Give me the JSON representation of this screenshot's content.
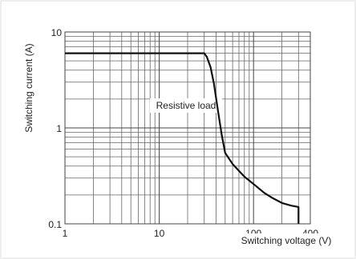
{
  "chart_data": {
    "type": "line",
    "xscale": "log",
    "yscale": "log",
    "xlim": [
      1,
      400
    ],
    "ylim": [
      0.1,
      10
    ],
    "xticks": [
      {
        "value": 1,
        "label": "1"
      },
      {
        "value": 10,
        "label": "10"
      },
      {
        "value": 100,
        "label": "100"
      },
      {
        "value": 400,
        "label": "400"
      }
    ],
    "yticks": [
      {
        "value": 0.1,
        "label": "0.1"
      },
      {
        "value": 1,
        "label": "1"
      },
      {
        "value": 10,
        "label": "10"
      }
    ],
    "xlabel": "Switching voltage (V)",
    "ylabel": "Switching current (A)",
    "grid": true,
    "annotation": "Resistive load",
    "series": [
      {
        "x": [
          1,
          30,
          32,
          35,
          38,
          42,
          46,
          50,
          60,
          80,
          100,
          130,
          160,
          200,
          250,
          300,
          300
        ],
        "y": [
          6,
          6,
          5.5,
          4.3,
          2.9,
          1.5,
          0.85,
          0.55,
          0.42,
          0.31,
          0.26,
          0.21,
          0.185,
          0.165,
          0.155,
          0.15,
          0.1
        ]
      }
    ]
  }
}
